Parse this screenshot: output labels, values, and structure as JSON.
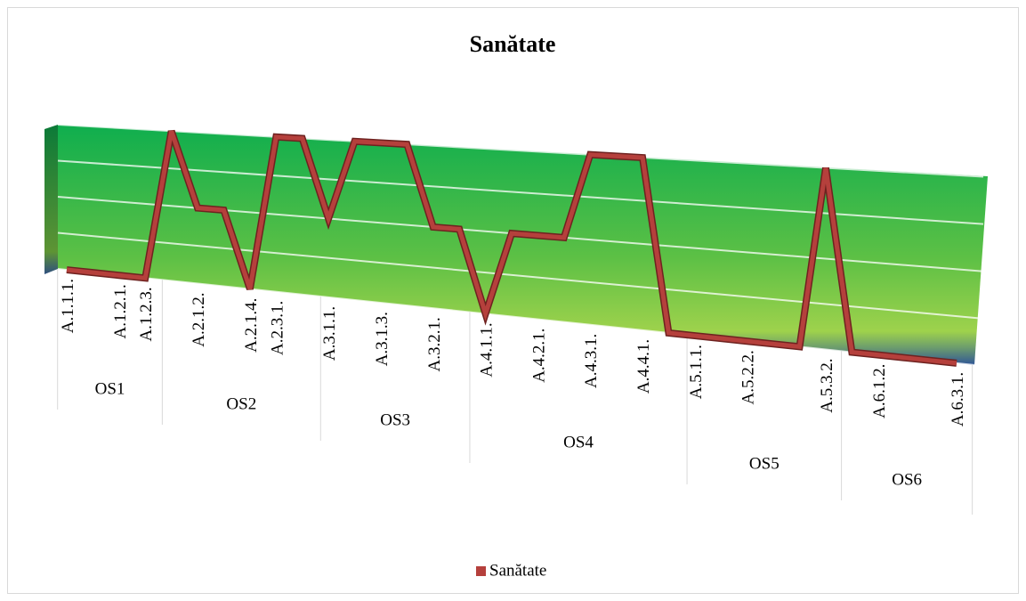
{
  "chart_data": {
    "type": "line3d",
    "title": "Sanătate",
    "categories": [
      "A.1.1.1.",
      null,
      "A.1.2.1.",
      "A.1.2.3.",
      null,
      "A.2.1.2.",
      null,
      "A.2.1.4.",
      "A.2.3.1.",
      null,
      "A.3.1.1.",
      null,
      "A.3.1.3.",
      null,
      "A.3.2.1.",
      null,
      "A.4.1.1.",
      null,
      "A.4.2.1.",
      null,
      "A.4.3.1.",
      null,
      "A.4.4.1.",
      null,
      "A.5.1.1.",
      null,
      "A.5.2.2.",
      null,
      null,
      "A.5.3.2.",
      null,
      "A.6.1.2.",
      null,
      null,
      "A.6.3.1."
    ],
    "groups": [
      "OS1",
      "OS2",
      "OS3",
      "OS4",
      "OS5",
      "OS6"
    ],
    "series": [
      {
        "name": "Sanătate",
        "color": "#b5403c",
        "values": [
          0,
          0,
          0,
          0,
          4,
          2,
          2,
          0,
          4,
          4,
          2,
          4,
          4,
          4,
          2,
          2,
          0,
          2,
          2,
          2,
          4,
          4,
          4,
          0,
          0,
          0,
          0,
          0,
          0,
          4,
          0,
          0,
          0,
          0,
          0
        ]
      }
    ],
    "ylim": [
      0,
      4
    ],
    "yticks": [
      0,
      1,
      2,
      3,
      4
    ],
    "grid": true,
    "legend": "bottom"
  }
}
